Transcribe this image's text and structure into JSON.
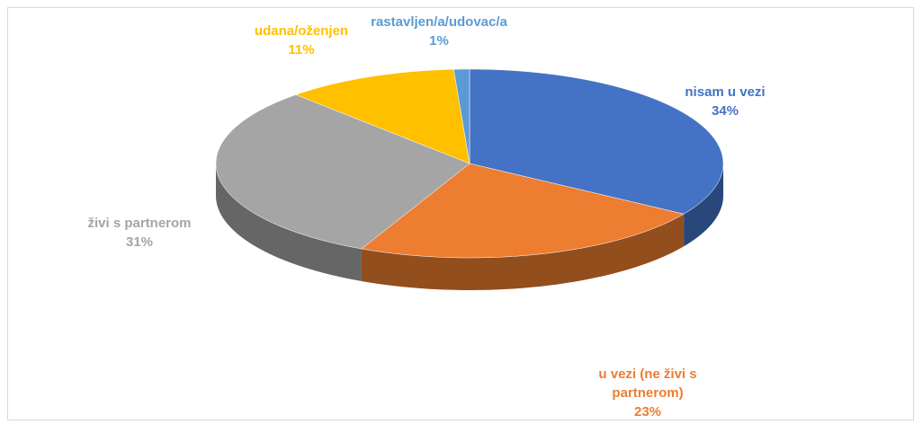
{
  "chart_data": {
    "type": "pie",
    "categories": [
      "nisam u vezi",
      "u vezi (ne živi s partnerom)",
      "živi s partnerom",
      "udana/oženjen",
      "rastavljen/a/udovac/a"
    ],
    "values": [
      34,
      23,
      31,
      11,
      1
    ],
    "value_labels": [
      "34%",
      "23%",
      "31%",
      "11%",
      "1%"
    ],
    "colors": [
      "#4472c4",
      "#ed7d31",
      "#a5a5a5",
      "#ffc000",
      "#5b9bd5"
    ]
  }
}
